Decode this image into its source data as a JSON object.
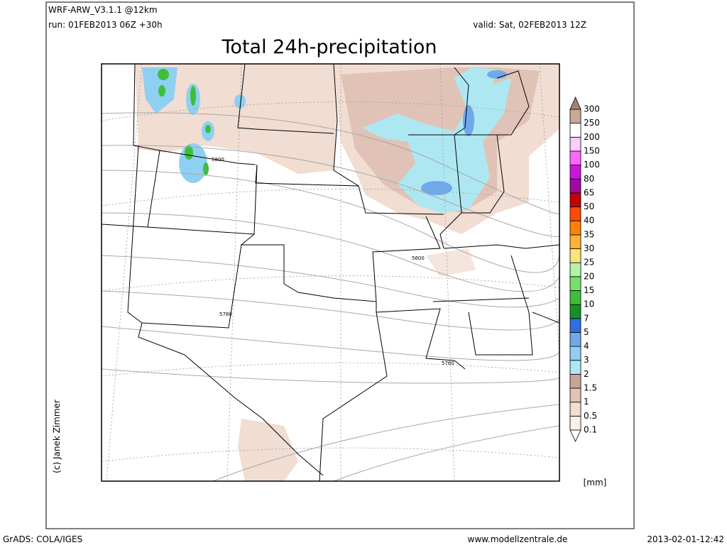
{
  "header": {
    "model": "WRF-ARW_V3.1.1 @12km",
    "run": "run: 01FEB2013 06Z +30h",
    "valid": "valid: Sat, 02FEB2013 12Z",
    "title": "Total 24h-precipitation"
  },
  "contour_labels": [
    "5800",
    "5600",
    "5780",
    "5760"
  ],
  "colorbar": {
    "unit": "[mm]",
    "levels": [
      0.1,
      0.5,
      1,
      1.5,
      2,
      3,
      4,
      5,
      7,
      10,
      15,
      20,
      25,
      30,
      35,
      40,
      50,
      65,
      80,
      100,
      150,
      200,
      250,
      300
    ],
    "colors": [
      "#ffffff",
      "#fbefe8",
      "#f1ddd2",
      "#e0c3b6",
      "#c9a394",
      "#ade8f2",
      "#8fd0f2",
      "#6fa9ea",
      "#2f6fdf",
      "#139326",
      "#3dbf3d",
      "#75e06a",
      "#b4f3a6",
      "#ffe27a",
      "#ffb233",
      "#ff8205",
      "#ff4a05",
      "#c40404",
      "#9e0aa0",
      "#cc14dd",
      "#ff66ff",
      "#ffccff",
      "#ffffff",
      "#c9a89b",
      "#a58374"
    ]
  },
  "credit": "(c) Janek Zimmer",
  "footer": {
    "left": "GrADS: COLA/IGES",
    "center": "www.modellzentrale.de",
    "right": "2013-02-01-12:42"
  }
}
